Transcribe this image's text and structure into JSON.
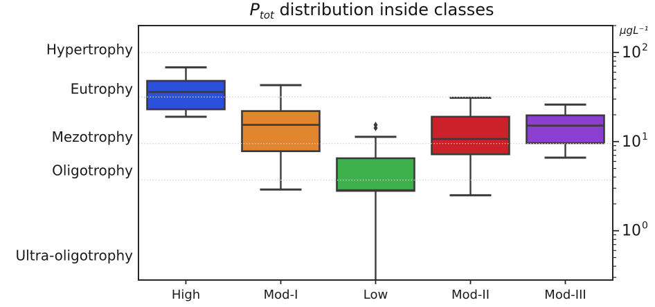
{
  "title": {
    "p": "P",
    "sub": "tot",
    "rest": " distribution inside classes"
  },
  "chart_data": {
    "type": "boxplot",
    "title": "P_tot distribution inside classes",
    "categories": [
      "High",
      "Mod-I",
      "Low",
      "Mod-II",
      "Mod-III"
    ],
    "y_axis": {
      "scale": "log",
      "ylim": [
        0.28,
        200
      ],
      "unit": "µgL⁻¹",
      "major_ticks": [
        {
          "value": 100,
          "base": "10",
          "exp": "2"
        },
        {
          "value": 10,
          "base": "10",
          "exp": "1"
        },
        {
          "value": 1,
          "base": "10",
          "exp": "0"
        }
      ],
      "minor_ticks": "log-decades"
    },
    "gridlines": [
      100,
      31.6,
      9.5,
      3.7
    ],
    "grid_style": "dotted",
    "class_labels": [
      {
        "label": "Hypertrophy",
        "at": 108
      },
      {
        "label": "Eutrophy",
        "at": 39
      },
      {
        "label": "Mezotrophy",
        "at": 11.3
      },
      {
        "label": "Oligotrophy",
        "at": 4.75
      },
      {
        "label": "Ultra-oligotrophy",
        "at": 0.53
      }
    ],
    "series": [
      {
        "name": "High",
        "color": "#2b50db",
        "whisker_low": 19,
        "q1": 23,
        "median": 36,
        "q3": 48,
        "whisker_high": 68,
        "fliers": []
      },
      {
        "name": "Mod-I",
        "color": "#e1862e",
        "whisker_low": 2.9,
        "q1": 7.8,
        "median": 15.4,
        "q3": 22,
        "whisker_high": 43,
        "fliers": []
      },
      {
        "name": "Low",
        "color": "#3eb14d",
        "whisker_low": 0.28,
        "cap_low": false,
        "q1": 2.8,
        "median": 2.85,
        "q3": 6.5,
        "whisker_high": 11.3,
        "fliers": [
          15.4,
          14.2
        ]
      },
      {
        "name": "Mod-II",
        "color": "#cb2128",
        "whisker_low": 2.5,
        "q1": 7.2,
        "median": 10.7,
        "q3": 19,
        "whisker_high": 31,
        "fliers": []
      },
      {
        "name": "Mod-III",
        "color": "#8a3fd2",
        "whisker_low": 6.6,
        "q1": 9.6,
        "median": 15.1,
        "q3": 19.7,
        "whisker_high": 26,
        "fliers": []
      }
    ],
    "colors": {
      "box_edge": "#3a3a3a",
      "axis": "#262626",
      "grid": "#d2d2d2",
      "text": "#1a1a1a"
    }
  }
}
